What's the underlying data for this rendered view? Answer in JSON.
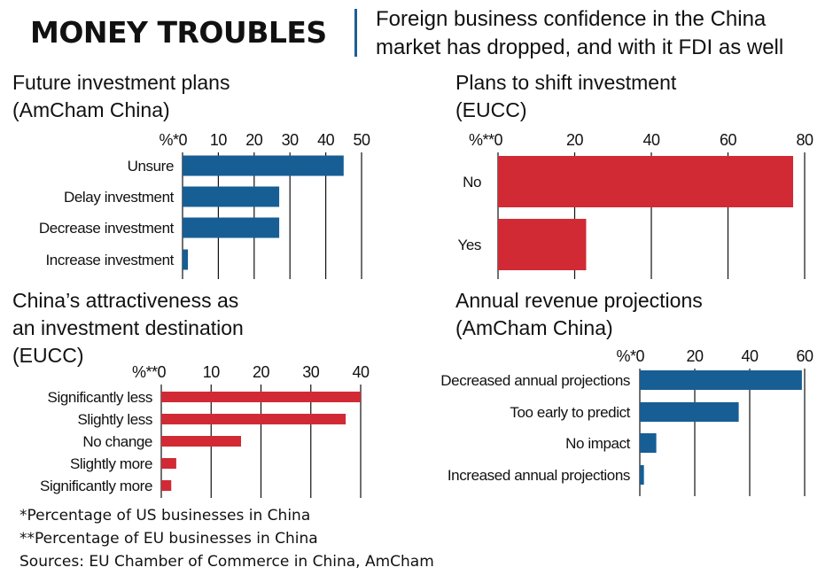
{
  "header": {
    "headline": "MONEY TROUBLES",
    "subhead_line1": "Foreign business confidence in the China",
    "subhead_line2": "market has dropped, and with it FDI as well"
  },
  "chart_data": [
    {
      "type": "bar",
      "orientation": "horizontal",
      "title_line1": "Future investment plans",
      "title_line2": "(AmCham China)",
      "unit_label": "%*",
      "categories": [
        "Unsure",
        "Delay investment",
        "Decrease investment",
        "Increase investment"
      ],
      "values": [
        45,
        27,
        27,
        1.5
      ],
      "xlim": [
        0,
        50
      ],
      "ticks": [
        0,
        10,
        20,
        30,
        40,
        50
      ],
      "color": "#175e94",
      "grid": true
    },
    {
      "type": "bar",
      "orientation": "horizontal",
      "title_line1": "Plans to shift investment",
      "title_line2": "(EUCC)",
      "unit_label": "%**",
      "categories": [
        "No",
        "Yes"
      ],
      "values": [
        77,
        23
      ],
      "xlim": [
        0,
        80
      ],
      "ticks": [
        0,
        20,
        40,
        60,
        80
      ],
      "color": "#d12a35",
      "grid": true
    },
    {
      "type": "bar",
      "orientation": "horizontal",
      "title_line1": "China’s attractiveness as",
      "title_line2": "an investment destination",
      "title_line3": "(EUCC)",
      "unit_label": "%**",
      "categories": [
        "Significantly less",
        "Slightly less",
        "No change",
        "Slightly more",
        "Significantly more"
      ],
      "values": [
        40,
        37,
        16,
        3,
        2
      ],
      "xlim": [
        0,
        40
      ],
      "ticks": [
        0,
        10,
        20,
        30,
        40
      ],
      "color": "#d12a35",
      "grid": true
    },
    {
      "type": "bar",
      "orientation": "horizontal",
      "title_line1": "Annual revenue projections",
      "title_line2": "(AmCham China)",
      "unit_label": "%*",
      "categories": [
        "Decreased annual projections",
        "Too early to predict",
        "No impact",
        "Increased annual projections"
      ],
      "values": [
        59,
        36,
        6,
        1.5
      ],
      "xlim": [
        0,
        60
      ],
      "ticks": [
        0,
        20,
        40,
        60
      ],
      "color": "#175e94",
      "grid": true
    }
  ],
  "footnotes": {
    "note1": "*Percentage of US businesses in China",
    "note2": "**Percentage of EU businesses in China",
    "sources": "Sources: EU Chamber of Commerce in China, AmCham"
  }
}
